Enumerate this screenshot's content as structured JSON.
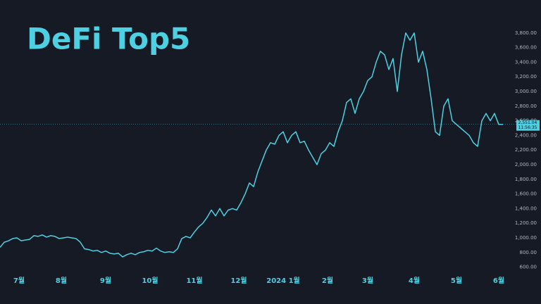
{
  "chart_data": {
    "type": "line",
    "title": "DeFi Top5",
    "color": "#4dd0e1",
    "values": [
      870,
      940,
      960,
      990,
      1000,
      960,
      970,
      980,
      1030,
      1020,
      1040,
      1010,
      1030,
      1020,
      990,
      1000,
      1010,
      1000,
      990,
      940,
      850,
      840,
      820,
      830,
      800,
      820,
      790,
      780,
      790,
      740,
      770,
      790,
      770,
      800,
      810,
      830,
      820,
      860,
      820,
      800,
      810,
      800,
      850,
      990,
      1020,
      1000,
      1080,
      1150,
      1200,
      1280,
      1380,
      1300,
      1400,
      1300,
      1380,
      1400,
      1380,
      1480,
      1600,
      1750,
      1700,
      1900,
      2050,
      2200,
      2300,
      2280,
      2400,
      2450,
      2300,
      2400,
      2450,
      2300,
      2320,
      2200,
      2100,
      2000,
      2150,
      2200,
      2300,
      2250,
      2450,
      2600,
      2850,
      2900,
      2700,
      2900,
      3000,
      3150,
      3200,
      3400,
      3550,
      3500,
      3300,
      3450,
      3000,
      3500,
      3800,
      3700,
      3800,
      3400,
      3550,
      3300,
      2900,
      2450,
      2400,
      2800,
      2900,
      2600,
      2550,
      2500,
      2450,
      2400,
      2300,
      2250,
      2600,
      2700,
      2600,
      2700,
      2550,
      2550
    ],
    "xticks": [
      {
        "value": 4.5,
        "label": "7월"
      },
      {
        "value": 14.5,
        "label": "8월"
      },
      {
        "value": 25,
        "label": "9월"
      },
      {
        "value": 35.5,
        "label": "10월"
      },
      {
        "value": 46,
        "label": "11월"
      },
      {
        "value": 56.5,
        "label": "12월"
      },
      {
        "value": 67,
        "label": "2024 1월"
      },
      {
        "value": 77.5,
        "label": "2월"
      },
      {
        "value": 87,
        "label": "3월"
      },
      {
        "value": 98,
        "label": "4월"
      },
      {
        "value": 108,
        "label": "5월"
      },
      {
        "value": 118,
        "label": "6월"
      }
    ],
    "ylim": [
      500,
      4250
    ],
    "yticks": [
      {
        "value": 600,
        "label": "600.00"
      },
      {
        "value": 800,
        "label": "800.00"
      },
      {
        "value": 1000,
        "label": "1,000.00"
      },
      {
        "value": 1200,
        "label": "1,200.00"
      },
      {
        "value": 1400,
        "label": "1,400.00"
      },
      {
        "value": 1600,
        "label": "1,600.00"
      },
      {
        "value": 1800,
        "label": "1,800.00"
      },
      {
        "value": 2000,
        "label": "2,000.00"
      },
      {
        "value": 2200,
        "label": "2,200.00"
      },
      {
        "value": 2400,
        "label": "2,400.00"
      },
      {
        "value": 2600,
        "label": "2,600.00"
      },
      {
        "value": 2800,
        "label": "2,800.00"
      },
      {
        "value": 3000,
        "label": "3,000.00"
      },
      {
        "value": 3200,
        "label": "3,200.00"
      },
      {
        "value": 3400,
        "label": "3,400.00"
      },
      {
        "value": 3600,
        "label": "3,600.00"
      },
      {
        "value": 3800,
        "label": "3,800.00"
      }
    ],
    "last_price": {
      "value": 2551.04,
      "label": "2,551.04"
    },
    "countdown": "11:56:35",
    "grid": false
  }
}
